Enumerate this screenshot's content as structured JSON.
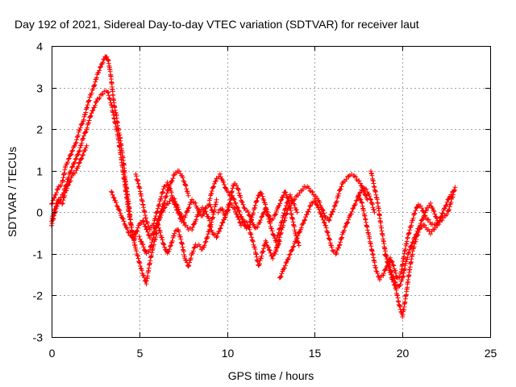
{
  "chart_data": {
    "type": "scatter",
    "title": "Day 192 of 2021, Sidereal Day-to-day VTEC variation (SDTVAR) for receiver laut",
    "xlabel": "GPS time / hours",
    "ylabel": "SDTVAR / TECUs",
    "xlim": [
      0,
      25
    ],
    "ylim": [
      -3,
      4
    ],
    "xticks": [
      "0",
      "5",
      "10",
      "15",
      "20",
      "25"
    ],
    "yticks": [
      "4",
      "3",
      "2",
      "1",
      "0",
      "-1",
      "-2",
      "-3"
    ],
    "grid": true,
    "marker": "+",
    "series": [
      {
        "name": "SDTVAR",
        "color": "#ff0000",
        "tracks": [
          {
            "x": [
              0.0,
              0.2,
              0.4,
              0.6,
              0.8,
              1.0,
              1.2,
              1.4,
              1.6,
              1.8,
              2.0,
              2.2,
              2.4,
              2.6,
              2.8,
              3.0,
              3.1,
              3.2,
              3.3,
              3.4,
              3.5,
              3.6,
              3.7,
              3.8,
              3.9,
              4.0,
              4.1,
              4.2,
              4.3,
              4.4,
              4.5,
              4.6,
              4.7,
              4.8
            ],
            "y": [
              0.2,
              0.4,
              0.6,
              0.7,
              1.1,
              1.3,
              1.5,
              1.7,
              2.0,
              2.2,
              2.5,
              2.8,
              3.0,
              3.3,
              3.5,
              3.7,
              3.75,
              3.7,
              3.5,
              3.2,
              2.8,
              2.5,
              2.3,
              2.0,
              1.8,
              1.5,
              1.2,
              0.8,
              0.5,
              0.2,
              -0.2,
              -0.5,
              -0.7,
              -0.5
            ]
          },
          {
            "x": [
              0.0,
              0.2,
              0.4,
              0.6,
              0.8,
              1.0,
              1.2,
              1.4,
              1.6,
              1.8,
              2.0,
              2.2,
              2.4,
              2.6,
              2.8,
              3.0,
              3.2,
              3.4,
              3.6,
              3.8,
              4.0,
              4.2,
              4.4,
              4.6,
              4.8,
              5.0,
              5.2,
              5.4,
              5.6,
              5.8,
              6.0
            ],
            "y": [
              -0.3,
              0.0,
              0.3,
              0.4,
              0.6,
              0.9,
              1.1,
              1.3,
              1.5,
              1.8,
              2.0,
              2.3,
              2.5,
              2.7,
              2.8,
              2.9,
              2.9,
              2.6,
              2.2,
              1.8,
              1.2,
              0.6,
              0.0,
              -0.5,
              -0.9,
              -1.2,
              -1.5,
              -1.7,
              -1.2,
              -0.8,
              -0.5
            ]
          },
          {
            "x": [
              0.0,
              0.2,
              0.4,
              0.6,
              0.8,
              1.0,
              1.2,
              1.4,
              1.6,
              1.8,
              2.0
            ],
            "y": [
              -0.2,
              0.1,
              0.3,
              0.2,
              0.5,
              0.7,
              0.9,
              1.0,
              1.2,
              1.4,
              1.6
            ]
          },
          {
            "x": [
              3.4,
              3.6,
              3.8,
              4.0,
              4.2,
              4.4,
              4.6,
              4.8,
              5.0,
              5.2,
              5.4,
              5.6,
              5.8,
              6.0,
              6.2,
              6.4,
              6.6,
              6.8,
              7.0,
              7.2,
              7.4,
              7.6,
              7.8
            ],
            "y": [
              0.5,
              0.3,
              0.1,
              -0.1,
              -0.3,
              -0.5,
              -0.6,
              -0.5,
              -0.3,
              -0.2,
              -0.4,
              -0.6,
              -0.5,
              -0.3,
              0.0,
              0.2,
              0.5,
              0.7,
              0.9,
              1.0,
              0.9,
              0.7,
              0.4
            ]
          },
          {
            "x": [
              4.8,
              5.0,
              5.2,
              5.4,
              5.6,
              5.8,
              6.0,
              6.2,
              6.4,
              6.6,
              6.8,
              7.0,
              7.2,
              7.4,
              7.6,
              7.8,
              8.0,
              8.2,
              8.4,
              8.6,
              8.8,
              9.0,
              9.2
            ],
            "y": [
              0.9,
              0.6,
              0.2,
              -0.2,
              -0.4,
              -0.3,
              0.0,
              0.3,
              0.6,
              0.7,
              0.5,
              0.2,
              0.0,
              -0.2,
              -0.1,
              0.1,
              0.3,
              0.2,
              0.0,
              -0.1,
              0.1,
              0.2,
              0.0
            ]
          },
          {
            "x": [
              5.0,
              5.2,
              5.4,
              5.6,
              5.8,
              6.0,
              6.2,
              6.4,
              6.6,
              6.8,
              7.0,
              7.2,
              7.4,
              7.6,
              7.8,
              8.0,
              8.2,
              8.4,
              8.6,
              8.8,
              9.0
            ],
            "y": [
              -0.6,
              -0.8,
              -1.0,
              -0.9,
              -0.6,
              -0.3,
              -0.1,
              0.1,
              0.2,
              0.3,
              0.3,
              0.1,
              -0.1,
              -0.3,
              -0.4,
              -0.4,
              -0.2,
              0.0,
              0.1,
              0.0,
              -0.2
            ]
          },
          {
            "x": [
              6.0,
              6.2,
              6.4,
              6.6,
              6.8,
              7.0,
              7.2,
              7.4,
              7.6,
              7.8,
              8.0,
              8.2,
              8.4,
              8.6,
              8.8,
              9.0,
              9.2,
              9.4
            ],
            "y": [
              -0.2,
              -0.5,
              -0.8,
              -1.0,
              -0.8,
              -0.5,
              -0.4,
              -0.7,
              -1.1,
              -1.3,
              -1.0,
              -0.8,
              -0.8,
              -0.9,
              -0.7,
              -0.4,
              -0.1,
              0.3
            ]
          },
          {
            "x": [
              9.0,
              9.2,
              9.4,
              9.6,
              9.8,
              10.0,
              10.2,
              10.4,
              10.6,
              10.8,
              11.0,
              11.2,
              11.4,
              11.6,
              11.8,
              12.0,
              12.2,
              12.4,
              12.6,
              12.8,
              13.0,
              13.2,
              13.4,
              13.6,
              13.8,
              14.0
            ],
            "y": [
              0.3,
              0.6,
              0.8,
              0.9,
              0.7,
              0.5,
              0.4,
              0.7,
              0.6,
              0.3,
              0.1,
              0.0,
              -0.2,
              -0.4,
              -0.3,
              -0.1,
              0.1,
              -0.2,
              -0.5,
              -0.7,
              -0.4,
              -0.1,
              0.2,
              0.4,
              0.2,
              0.0
            ]
          },
          {
            "x": [
              9.0,
              9.2,
              9.4,
              9.6,
              9.8,
              10.0,
              10.2,
              10.4,
              10.6,
              10.8,
              11.0,
              11.2,
              11.4,
              11.6,
              11.8,
              12.0,
              12.2,
              12.4,
              12.6,
              12.8,
              13.0
            ],
            "y": [
              -0.3,
              -0.5,
              -0.6,
              -0.4,
              -0.2,
              0.0,
              0.2,
              0.1,
              -0.1,
              -0.3,
              -0.2,
              -0.3,
              -0.6,
              -0.9,
              -1.3,
              -1.0,
              -0.7,
              -0.9,
              -1.1,
              -0.9,
              -0.7
            ]
          },
          {
            "x": [
              9.5,
              9.7,
              9.9,
              10.1,
              10.3,
              10.5,
              10.7,
              10.9,
              11.1,
              11.3,
              11.5,
              11.7,
              11.9,
              12.1,
              12.3,
              12.5,
              12.7,
              12.9,
              13.1,
              13.3,
              13.5,
              13.7,
              13.9,
              14.1
            ],
            "y": [
              0.0,
              0.1,
              -0.1,
              0.2,
              0.4,
              0.2,
              0.0,
              -0.2,
              -0.4,
              -0.3,
              0.0,
              0.3,
              0.5,
              0.3,
              0.0,
              -0.2,
              -0.1,
              0.1,
              0.3,
              0.5,
              0.3,
              -0.1,
              -0.5,
              -0.8
            ]
          },
          {
            "x": [
              12.8,
              13.0,
              13.2,
              13.4,
              13.6,
              13.8,
              14.0,
              14.2,
              14.4,
              14.6,
              14.8,
              15.0,
              15.2,
              15.4,
              15.6,
              15.8,
              16.0,
              16.2,
              16.4,
              16.6,
              16.8,
              17.0,
              17.2,
              17.4,
              17.6,
              17.8,
              18.0
            ],
            "y": [
              -0.9,
              -0.6,
              -0.3,
              0.0,
              0.2,
              0.3,
              0.4,
              0.5,
              0.6,
              0.6,
              0.5,
              0.4,
              0.3,
              0.1,
              -0.1,
              -0.2,
              0.0,
              0.2,
              0.5,
              0.7,
              0.8,
              0.9,
              0.9,
              0.8,
              0.7,
              0.5,
              0.3
            ]
          },
          {
            "x": [
              13.0,
              13.2,
              13.4,
              13.6,
              13.8,
              14.0,
              14.2,
              14.4,
              14.6,
              14.8,
              15.0,
              15.2,
              15.4,
              15.6,
              15.8,
              16.0,
              16.2,
              16.4,
              16.6,
              16.8,
              17.0,
              17.2,
              17.4,
              17.6,
              17.8,
              18.0,
              18.2,
              18.4
            ],
            "y": [
              -1.6,
              -1.4,
              -1.2,
              -1.0,
              -0.8,
              -0.6,
              -0.4,
              -0.2,
              0.0,
              0.2,
              0.3,
              0.1,
              -0.1,
              -0.3,
              -0.6,
              -0.9,
              -1.0,
              -0.8,
              -0.5,
              -0.3,
              -0.1,
              0.1,
              0.3,
              0.5,
              0.6,
              0.5,
              0.3,
              0.0
            ]
          },
          {
            "x": [
              17.5,
              17.7,
              17.9,
              18.1,
              18.3,
              18.5,
              18.7,
              18.9,
              19.1,
              19.3,
              19.5,
              19.7,
              19.9,
              20.1,
              20.3,
              20.5,
              20.7,
              20.9,
              21.1,
              21.3,
              21.5,
              21.7,
              21.9,
              22.1,
              22.3,
              22.5,
              22.7,
              22.9
            ],
            "y": [
              0.4,
              0.2,
              -0.2,
              -0.6,
              -1.0,
              -1.4,
              -1.6,
              -1.5,
              -1.3,
              -1.1,
              -1.3,
              -1.6,
              -1.5,
              -1.0,
              -0.6,
              -0.3,
              0.0,
              0.2,
              0.1,
              -0.1,
              -0.2,
              -0.3,
              -0.3,
              -0.2,
              0.0,
              0.2,
              0.4,
              0.5
            ]
          },
          {
            "x": [
              18.2,
              18.4,
              18.6,
              18.8,
              19.0,
              19.2,
              19.4,
              19.6,
              19.8,
              20.0,
              20.2,
              20.4,
              20.6,
              20.8,
              21.0,
              21.2,
              21.4,
              21.6,
              21.8,
              22.0,
              22.2,
              22.4,
              22.6,
              22.8,
              23.0
            ],
            "y": [
              1.0,
              0.6,
              0.2,
              -0.4,
              -0.9,
              -1.3,
              -1.6,
              -1.8,
              -2.2,
              -2.5,
              -2.0,
              -1.4,
              -0.9,
              -0.6,
              -0.4,
              -0.3,
              -0.4,
              -0.5,
              -0.4,
              -0.3,
              -0.2,
              -0.1,
              0.0,
              0.3,
              0.6
            ]
          },
          {
            "x": [
              19.0,
              19.2,
              19.4,
              19.6,
              19.8,
              20.0,
              20.2,
              20.4,
              20.6,
              20.8,
              21.0,
              21.2,
              21.4,
              21.6,
              21.8,
              22.0
            ],
            "y": [
              -1.0,
              -1.2,
              -1.5,
              -1.7,
              -1.8,
              -1.6,
              -1.2,
              -0.9,
              -0.7,
              -0.5,
              -0.3,
              -0.1,
              0.1,
              0.2,
              0.0,
              -0.2
            ]
          }
        ]
      }
    ]
  }
}
